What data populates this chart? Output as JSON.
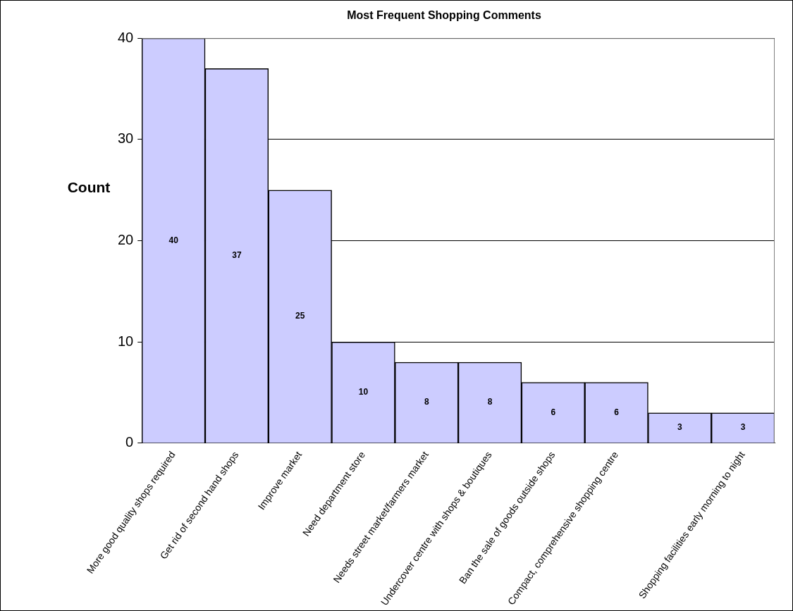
{
  "chart_data": {
    "type": "bar",
    "title": "Most Frequent Shopping Comments",
    "ylabel": "Count",
    "categories": [
      "More good quality shops required",
      "Get rid of second hand shops",
      "Improve market",
      "Need department store",
      "Needs street market/farmers market",
      "Undercover centre with shops & boutiques",
      "Ban the sale of goods outside shops",
      "Compact, comprehensive shopping centre",
      null,
      "Shopping facilities early morning to night"
    ],
    "values": [
      40,
      37,
      25,
      10,
      8,
      8,
      6,
      6,
      3,
      3
    ],
    "color": "#ccccff",
    "ylim": [
      0,
      40
    ],
    "yticks": [
      0,
      10,
      20,
      30,
      40
    ],
    "grid": "y",
    "legend": false,
    "data_labels": true
  }
}
